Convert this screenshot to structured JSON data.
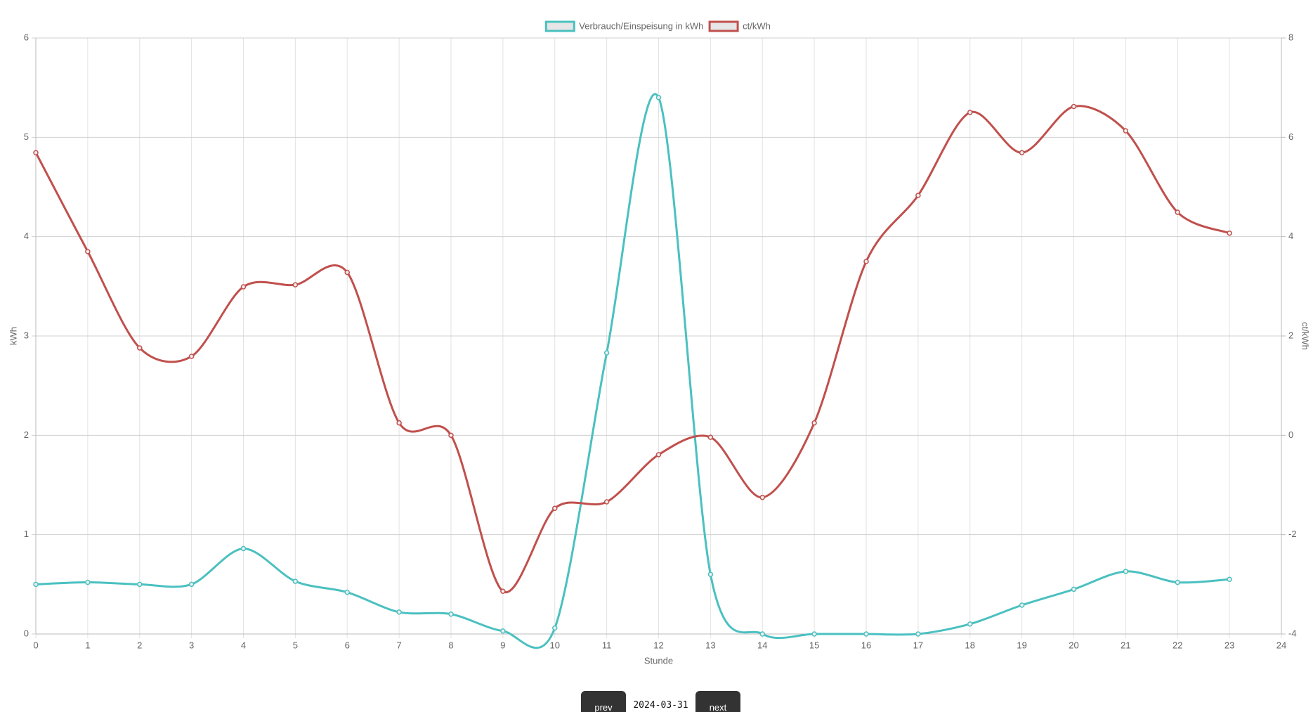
{
  "chart_data": {
    "type": "line",
    "x": [
      0,
      1,
      2,
      3,
      4,
      5,
      6,
      7,
      8,
      9,
      10,
      11,
      12,
      13,
      14,
      15,
      16,
      17,
      18,
      19,
      20,
      21,
      22,
      23
    ],
    "x_label": "Stunde",
    "y_label": "kWh",
    "y2_label": "ct/kWh",
    "xlim": [
      0,
      24
    ],
    "xticks": [
      0,
      1,
      2,
      3,
      4,
      5,
      6,
      7,
      8,
      9,
      10,
      11,
      12,
      13,
      14,
      15,
      16,
      17,
      18,
      19,
      20,
      21,
      22,
      23,
      24
    ],
    "ylim": [
      0,
      6
    ],
    "yticks": [
      0,
      1,
      2,
      3,
      4,
      5,
      6
    ],
    "y2lim": [
      -4,
      8
    ],
    "y2ticks": [
      -4,
      -2,
      0,
      2,
      4,
      6,
      8
    ],
    "grid": true,
    "legend": "top",
    "series": [
      {
        "name": "Verbrauch/Einspeisung in kWh",
        "color": "#4bc0c0",
        "values": [
          0.5,
          0.52,
          0.5,
          0.5,
          0.86,
          0.53,
          0.42,
          0.22,
          0.2,
          0.03,
          0.06,
          2.83,
          5.4,
          0.6,
          0,
          0,
          0,
          0,
          0.1,
          0.29,
          0.45,
          0.63,
          0.52,
          0.55
        ]
      },
      {
        "name": "ct/kWh",
        "color": "#c0504d",
        "axis": "y2",
        "values": [
          5.69,
          3.7,
          1.76,
          1.59,
          2.99,
          3.03,
          3.28,
          0.25,
          0.0,
          -3.14,
          -1.47,
          -1.34,
          -0.39,
          -0.04,
          -1.25,
          0.25,
          3.5,
          4.83,
          6.5,
          5.69,
          6.62,
          6.13,
          4.49,
          4.07
        ]
      }
    ]
  },
  "navigation": {
    "prev": "prev",
    "date": "2024-03-31",
    "next": "next"
  }
}
